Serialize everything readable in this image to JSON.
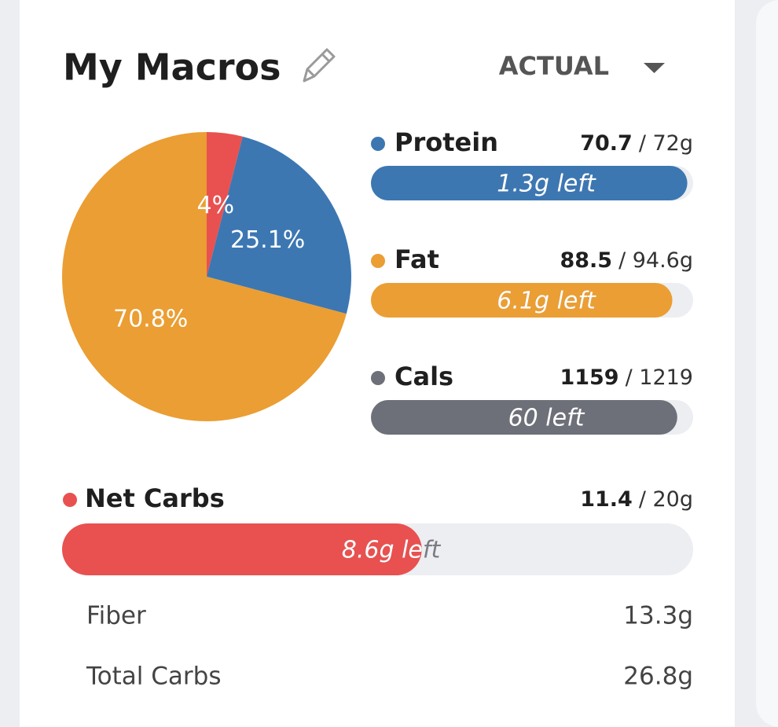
{
  "header": {
    "title": "My Macros",
    "dropdown": "ACTUAL"
  },
  "chart_data": {
    "type": "pie",
    "values": [
      4,
      25.1,
      70.8
    ],
    "value_labels": [
      "4%",
      "25.1%",
      "70.8%"
    ],
    "colors": [
      "#e85150",
      "#3c77b2",
      "#eb9e33"
    ]
  },
  "macros": [
    {
      "name": "Protein",
      "amount": 70.7,
      "goal": 72,
      "goal_label": "/ 72g",
      "left_label": "1.3g left",
      "color": "#3c77b2"
    },
    {
      "name": "Fat",
      "amount": 88.5,
      "goal": 94.6,
      "goal_label": "/ 94.6g",
      "left_label": "6.1g left",
      "color": "#eb9e33"
    },
    {
      "name": "Cals",
      "amount": 1159,
      "goal": 1219,
      "goal_label": "/ 1219",
      "left_label": "60 left",
      "color": "#6d7078"
    }
  ],
  "net_carbs": {
    "name": "Net Carbs",
    "amount": 11.4,
    "goal": 20,
    "goal_label": "/ 20g",
    "left_label": "8.6g left",
    "color": "#e85150"
  },
  "details": [
    {
      "label": "Fiber",
      "value": "13.3g"
    },
    {
      "label": "Total Carbs",
      "value": "26.8g"
    }
  ]
}
